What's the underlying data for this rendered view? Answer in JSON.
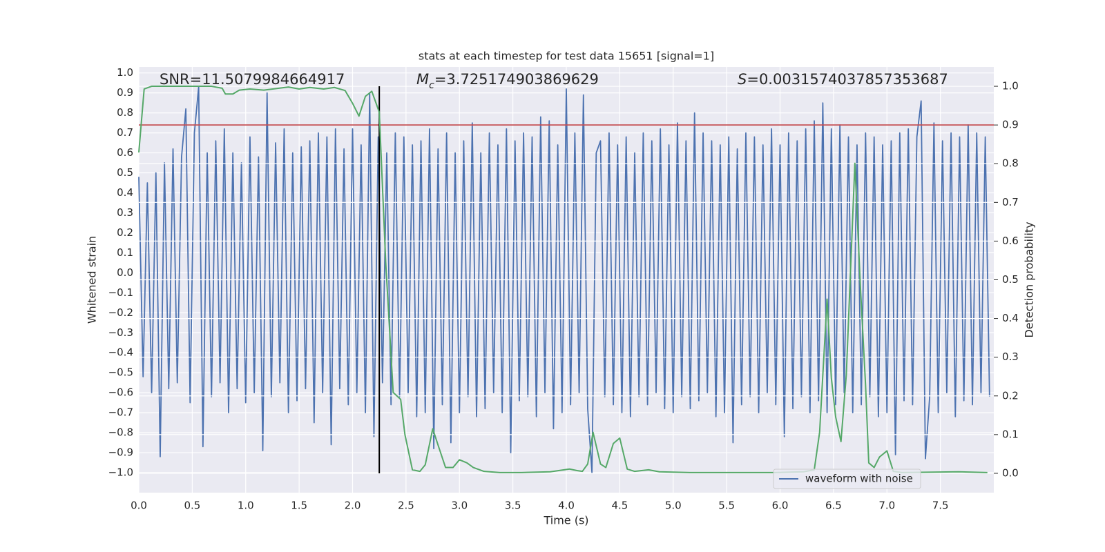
{
  "chart_data": {
    "type": "line",
    "title": "stats at each timestep for test data 15651 [signal=1]",
    "xlabel": "Time (s)",
    "ylabel": "Whitened strain",
    "y2label": "Detection probability",
    "xlim": [
      0,
      8
    ],
    "ylim": [
      -1.1,
      1.03
    ],
    "y2lim": [
      -0.05,
      1.05
    ],
    "grid": true,
    "legend": "lower right",
    "xticks": [
      {
        "value": 0,
        "label": "0.0"
      },
      0.5,
      {
        "value": 1,
        "label": "1.0"
      },
      1.5,
      {
        "value": 2,
        "label": "2.0"
      },
      2.5,
      {
        "value": 3,
        "label": "3.0"
      },
      3.5,
      {
        "value": 4,
        "label": "4.0"
      },
      4.5,
      {
        "value": 5,
        "label": "5.0"
      },
      5.5,
      {
        "value": 6,
        "label": "6.0"
      },
      6.5,
      {
        "value": 7,
        "label": "7.0"
      },
      7.5
    ],
    "yticks": [
      {
        "value": -1,
        "label": "−1.0"
      },
      {
        "value": -0.9,
        "label": "−0.9"
      },
      {
        "value": -0.8,
        "label": "−0.8"
      },
      {
        "value": -0.7,
        "label": "−0.7"
      },
      {
        "value": -0.6,
        "label": "−0.6"
      },
      {
        "value": -0.5,
        "label": "−0.5"
      },
      {
        "value": -0.4,
        "label": "−0.4"
      },
      {
        "value": -0.3,
        "label": "−0.3"
      },
      {
        "value": -0.2,
        "label": "−0.2"
      },
      {
        "value": -0.1,
        "label": "−0.1"
      },
      {
        "value": 0,
        "label": "0.0"
      },
      0.1,
      0.2,
      0.3,
      0.4,
      0.5,
      0.6,
      0.7,
      0.8,
      0.9,
      {
        "value": 1,
        "label": "1.0"
      }
    ],
    "y2ticks": [
      {
        "value": 0,
        "label": "0.0"
      },
      0.1,
      0.2,
      0.3,
      0.4,
      0.5,
      0.6,
      0.7,
      0.8,
      0.9,
      {
        "value": 1,
        "label": "1.0"
      }
    ],
    "annotations": [
      {
        "text": "SNR=11.5079984664917"
      },
      {
        "symbol": "M",
        "subscript": "c",
        "text": "=3.725174903869629"
      },
      {
        "symbol": "S",
        "text": "=0.0031574037857353687"
      }
    ],
    "reference_lines": [
      {
        "orientation": "horizontal",
        "y": 0.9,
        "axis": "y2",
        "color": "#c44e52"
      },
      {
        "orientation": "vertical",
        "x": 2.25,
        "ymin": 0,
        "ymax": 1,
        "axis": "y2",
        "color": "#000000"
      }
    ],
    "series": [
      {
        "name": "waveform with noise",
        "color": "#4c72b0",
        "x": [
          0,
          0.04,
          0.08,
          0.12,
          0.16,
          0.2,
          0.24,
          0.28,
          0.32,
          0.36,
          0.4,
          0.44,
          0.48,
          0.52,
          0.56,
          0.6,
          0.64,
          0.68,
          0.72,
          0.76,
          0.8,
          0.84,
          0.88,
          0.92,
          0.96,
          1,
          1.04,
          1.08,
          1.12,
          1.16,
          1.2,
          1.24,
          1.28,
          1.32,
          1.36,
          1.4,
          1.44,
          1.48,
          1.52,
          1.56,
          1.6,
          1.64,
          1.68,
          1.72,
          1.76,
          1.8,
          1.84,
          1.88,
          1.92,
          1.96,
          2,
          2.04,
          2.08,
          2.12,
          2.16,
          2.2,
          2.24,
          2.28,
          2.32,
          2.36,
          2.4,
          2.44,
          2.48,
          2.52,
          2.56,
          2.6,
          2.64,
          2.68,
          2.72,
          2.76,
          2.8,
          2.84,
          2.88,
          2.92,
          2.96,
          3,
          3.04,
          3.08,
          3.12,
          3.16,
          3.2,
          3.24,
          3.28,
          3.32,
          3.36,
          3.4,
          3.44,
          3.48,
          3.52,
          3.56,
          3.6,
          3.64,
          3.68,
          3.72,
          3.76,
          3.8,
          3.84,
          3.88,
          3.92,
          3.96,
          4,
          4.04,
          4.08,
          4.12,
          4.16,
          4.2,
          4.24,
          4.28,
          4.32,
          4.36,
          4.4,
          4.44,
          4.48,
          4.52,
          4.56,
          4.6,
          4.64,
          4.68,
          4.72,
          4.76,
          4.8,
          4.84,
          4.88,
          4.92,
          4.96,
          5,
          5.04,
          5.08,
          5.12,
          5.16,
          5.2,
          5.24,
          5.28,
          5.32,
          5.36,
          5.4,
          5.44,
          5.48,
          5.52,
          5.56,
          5.6,
          5.64,
          5.68,
          5.72,
          5.76,
          5.8,
          5.84,
          5.88,
          5.92,
          5.96,
          6,
          6.04,
          6.08,
          6.12,
          6.16,
          6.2,
          6.24,
          6.28,
          6.32,
          6.36,
          6.4,
          6.44,
          6.48,
          6.52,
          6.56,
          6.6,
          6.64,
          6.68,
          6.72,
          6.76,
          6.8,
          6.84,
          6.88,
          6.92,
          6.96,
          7,
          7.04,
          7.08,
          7.12,
          7.16,
          7.2,
          7.24,
          7.28,
          7.32,
          7.36,
          7.4,
          7.44,
          7.48,
          7.52,
          7.56,
          7.6,
          7.64,
          7.68,
          7.72,
          7.76,
          7.8,
          7.84,
          7.88,
          7.92,
          7.96
        ],
        "values": [
          0.48,
          -0.52,
          0.45,
          -0.6,
          0.5,
          -0.92,
          0.55,
          -0.58,
          0.62,
          -0.55,
          0.58,
          0.82,
          -0.65,
          0.7,
          0.93,
          -0.87,
          0.6,
          -0.62,
          0.66,
          -0.55,
          0.72,
          -0.7,
          0.6,
          -0.58,
          0.55,
          -0.65,
          0.68,
          -0.6,
          0.58,
          -0.89,
          0.9,
          -0.62,
          0.65,
          -0.55,
          0.72,
          -0.7,
          0.6,
          -0.64,
          0.63,
          -0.58,
          0.66,
          -0.75,
          0.7,
          -0.6,
          0.68,
          -0.86,
          0.72,
          -0.58,
          0.62,
          -0.66,
          0.72,
          -0.6,
          0.64,
          -0.7,
          0.9,
          -0.82,
          0.68,
          -0.55,
          0.6,
          -0.66,
          0.7,
          -0.62,
          0.68,
          -0.6,
          0.64,
          -0.72,
          0.66,
          -0.7,
          0.72,
          -0.88,
          0.62,
          -0.66,
          0.7,
          -0.85,
          0.6,
          -0.7,
          0.66,
          -0.62,
          0.75,
          -0.72,
          0.6,
          -0.68,
          0.7,
          -0.6,
          0.64,
          -0.7,
          0.72,
          -0.9,
          0.66,
          -0.64,
          0.7,
          -0.62,
          0.68,
          -0.72,
          0.78,
          -0.6,
          0.76,
          -0.78,
          0.64,
          -0.7,
          0.92,
          -0.66,
          0.7,
          -0.6,
          0.89,
          -0.68,
          -1.0,
          0.6,
          0.66,
          -0.62,
          0.7,
          -0.66,
          0.64,
          -0.7,
          0.68,
          -0.72,
          0.6,
          -0.62,
          0.7,
          -0.66,
          0.66,
          -0.6,
          0.72,
          -0.68,
          0.64,
          -0.7,
          0.75,
          -0.62,
          0.66,
          -0.68,
          0.8,
          -0.64,
          0.7,
          -0.6,
          0.66,
          -0.72,
          0.64,
          -0.7,
          0.68,
          -0.85,
          0.62,
          -0.66,
          0.7,
          -0.62,
          0.68,
          -0.7,
          0.64,
          -0.6,
          0.72,
          -0.66,
          0.64,
          -0.82,
          0.7,
          -0.68,
          0.66,
          -0.62,
          0.72,
          -0.7,
          0.76,
          -0.64,
          0.85,
          -0.7,
          0.72,
          -0.66,
          0.74,
          -0.6,
          0.68,
          -0.7,
          0.64,
          -0.66,
          0.7,
          -0.62,
          0.68,
          -0.72,
          0.64,
          -0.7,
          0.66,
          -0.91,
          0.7,
          -0.64,
          0.72,
          -0.66,
          0.68,
          0.86,
          -0.93,
          -0.62,
          0.75,
          -0.7,
          0.66,
          -0.6,
          0.7,
          -0.72,
          0.68,
          -0.64,
          0.74,
          -0.66,
          0.7,
          -0.6,
          0.68,
          -0.62
        ]
      },
      {
        "color": "#55a868",
        "axis": "y2",
        "x": [
          0,
          0.05,
          0.12,
          0.68,
          0.78,
          0.81,
          0.88,
          0.94,
          1.04,
          1.17,
          1.4,
          1.5,
          1.6,
          1.73,
          1.83,
          1.93,
          2,
          2.06,
          2.12,
          2.18,
          2.25,
          2.31,
          2.38,
          2.45,
          2.49,
          2.56,
          2.63,
          2.68,
          2.75,
          2.8,
          2.87,
          2.94,
          3,
          3.07,
          3.13,
          3.23,
          3.38,
          3.58,
          3.85,
          3.98,
          4.03,
          4.1,
          4.15,
          4.2,
          4.25,
          4.32,
          4.37,
          4.44,
          4.5,
          4.57,
          4.64,
          4.77,
          4.87,
          5.16,
          5.56,
          5.96,
          6.22,
          6.32,
          6.37,
          6.44,
          6.48,
          6.52,
          6.57,
          6.62,
          6.7,
          6.75,
          6.8,
          6.83,
          6.88,
          6.93,
          7,
          7.06,
          7.14,
          7.67,
          7.94
        ],
        "values": [
          0.829,
          0.993,
          1,
          1,
          0.995,
          0.98,
          0.98,
          0.99,
          0.993,
          0.99,
          0.998,
          0.993,
          0.997,
          0.993,
          0.997,
          0.989,
          0.956,
          0.923,
          0.974,
          0.987,
          0.933,
          0.546,
          0.209,
          0.191,
          0.1,
          0.009,
          0.005,
          0.022,
          0.115,
          0.073,
          0.015,
          0.015,
          0.035,
          0.027,
          0.015,
          0.005,
          0.002,
          0.002,
          0.004,
          0.009,
          0.011,
          0.007,
          0.005,
          0.024,
          0.106,
          0.024,
          0.015,
          0.077,
          0.091,
          0.011,
          0.005,
          0.009,
          0.004,
          0.002,
          0.002,
          0.002,
          0.004,
          0.009,
          0.106,
          0.45,
          0.246,
          0.146,
          0.082,
          0.255,
          0.801,
          0.492,
          0.228,
          0.027,
          0.015,
          0.042,
          0.058,
          0.005,
          0.002,
          0.004,
          0.002
        ]
      }
    ]
  }
}
